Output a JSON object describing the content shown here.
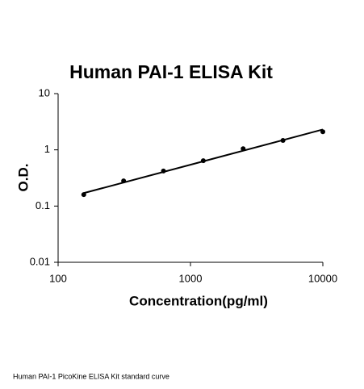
{
  "chart_data": {
    "type": "scatter",
    "title": "Human PAI-1 ELISA Kit",
    "x_label": "Concentration(pg/ml)",
    "y_label": "O.D.",
    "caption": "Human PAI-1 PicoKine ELISA Kit standard curve",
    "x": [
      156.25,
      312.5,
      625,
      1250,
      2500,
      5000,
      10000
    ],
    "values": [
      0.16,
      0.28,
      0.42,
      0.64,
      1.05,
      1.47,
      2.1
    ],
    "color": "#000000",
    "fit_line": {
      "x": [
        156.25,
        10000
      ],
      "values": [
        0.17,
        2.3
      ]
    },
    "xlim": [
      100,
      10000
    ],
    "ylim": [
      0.01,
      10
    ],
    "xticks": [
      100,
      1000,
      10000
    ],
    "yticks": [
      0.01,
      0.1,
      1,
      10
    ],
    "x_log": true,
    "y_log": true
  }
}
